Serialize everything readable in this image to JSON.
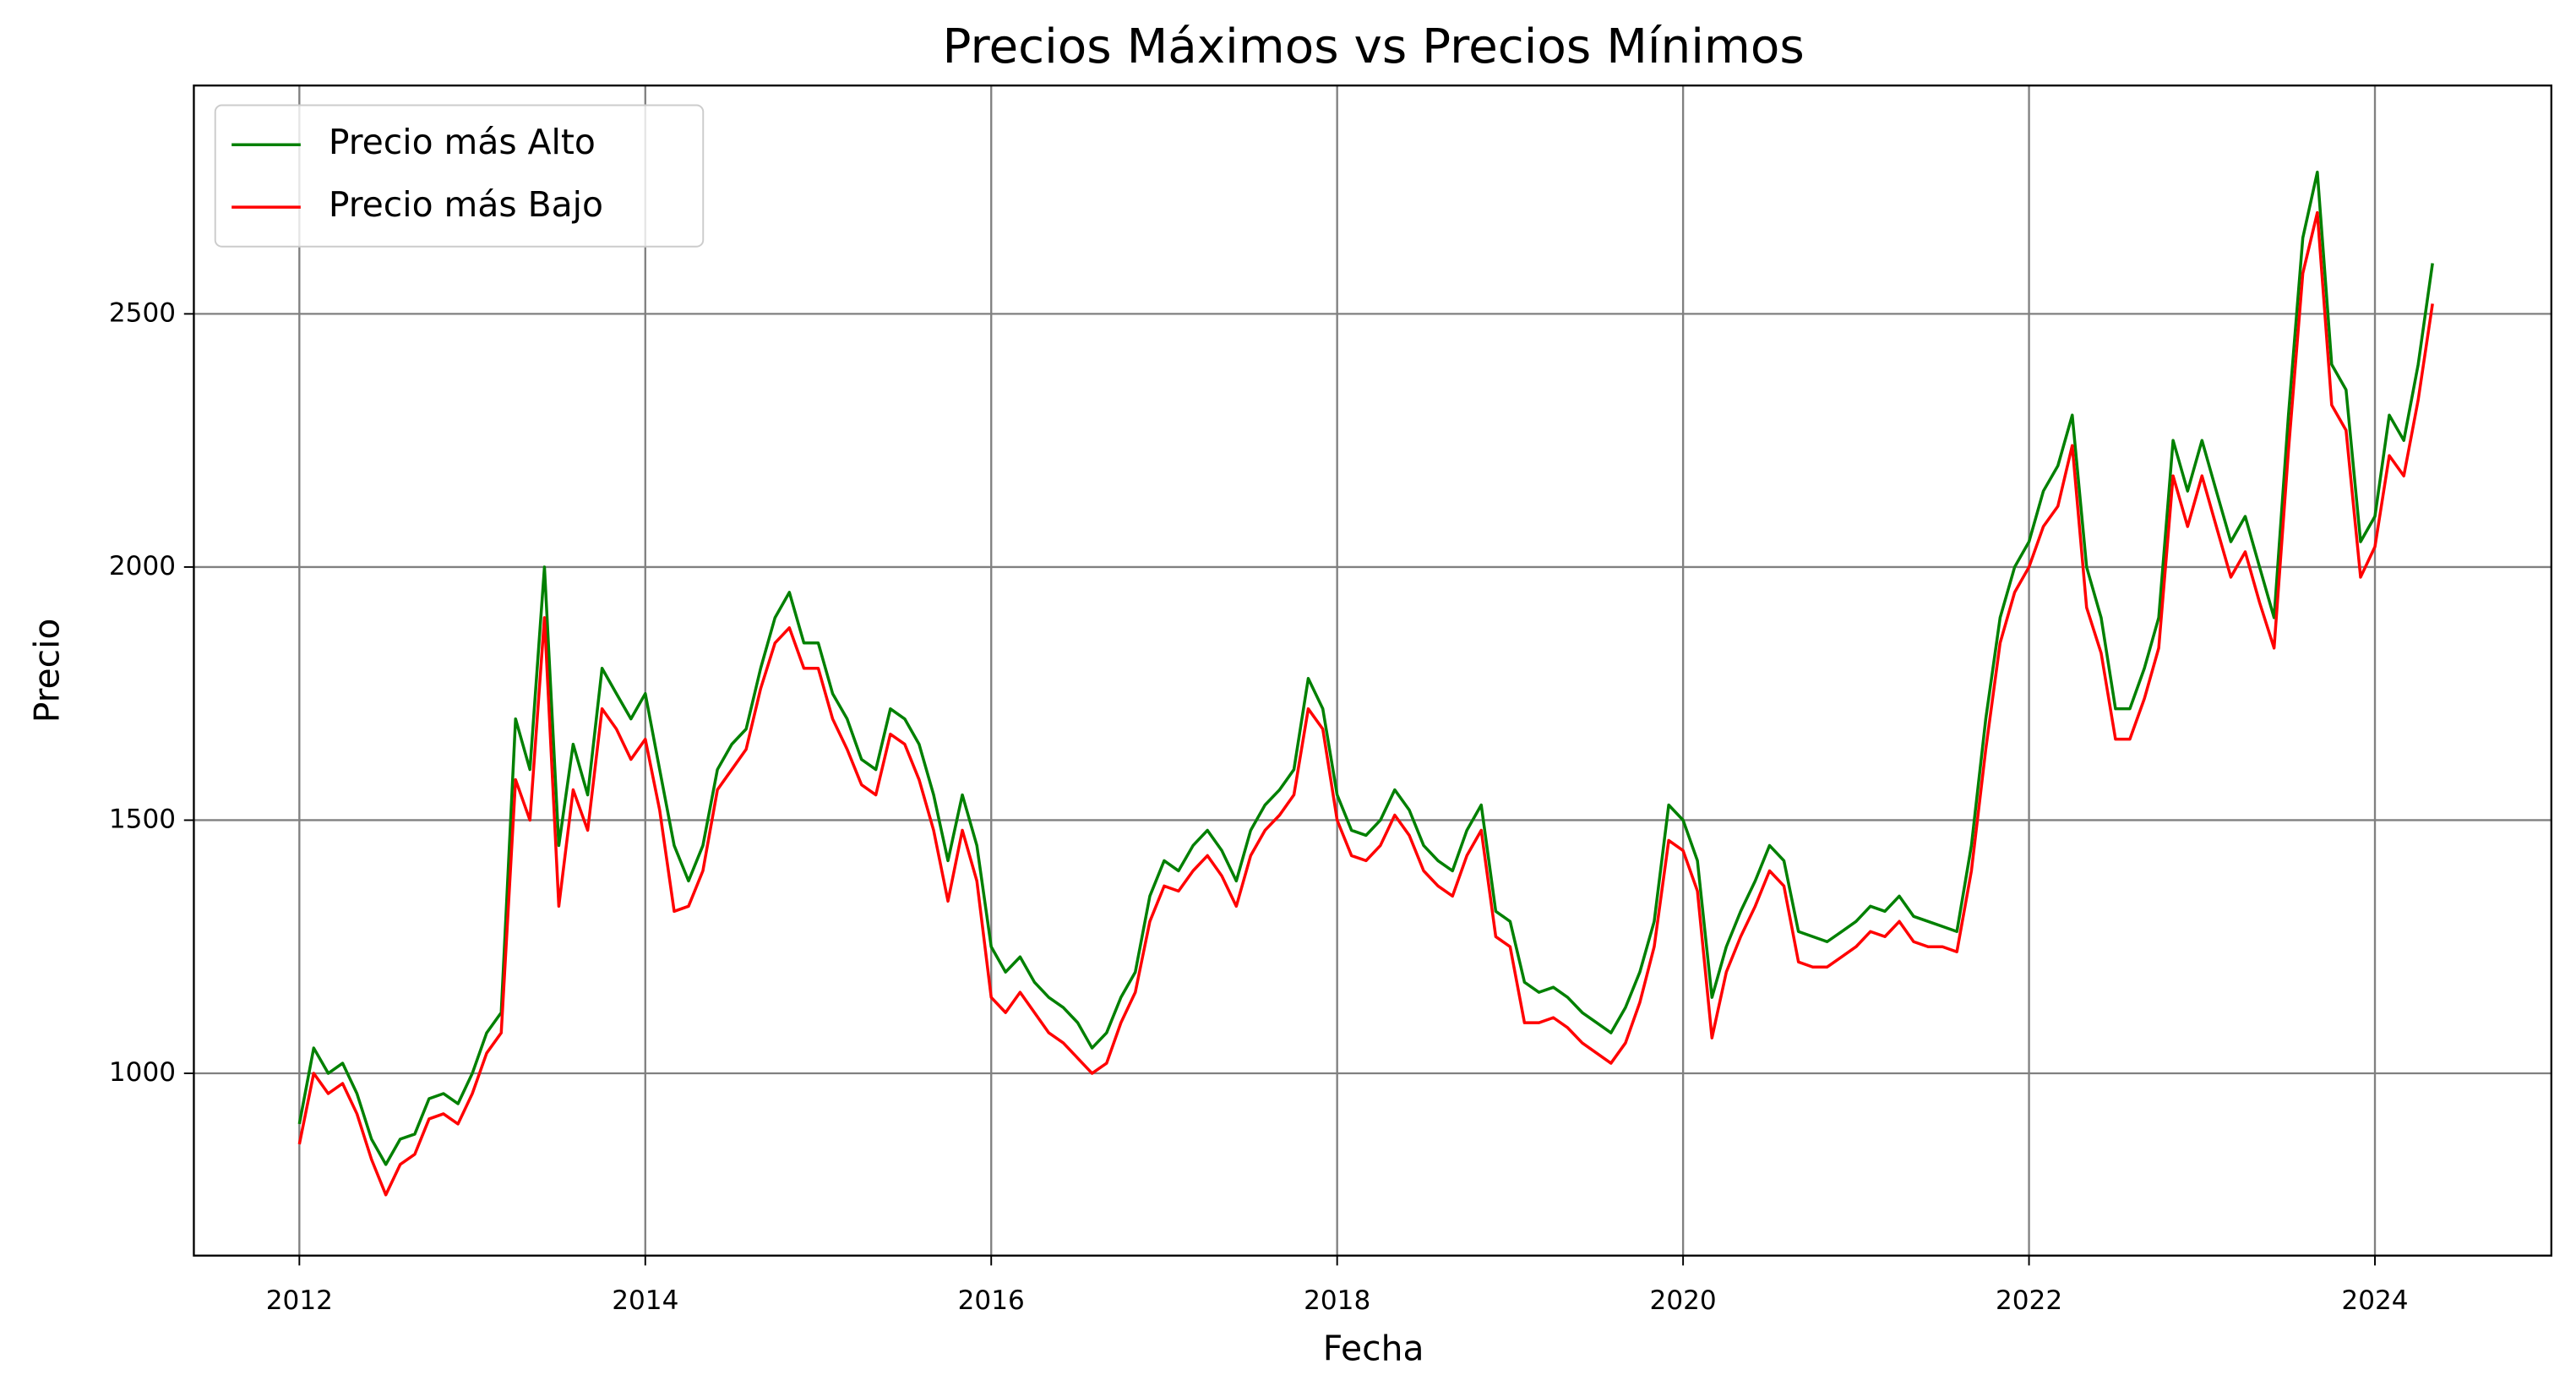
{
  "chart_data": {
    "type": "line",
    "title": "Precios Máximos vs Precios Mínimos",
    "xlabel": "Fecha",
    "ylabel": "Precio",
    "x": [
      2012.0,
      2012.083,
      2012.167,
      2012.25,
      2012.333,
      2012.417,
      2012.5,
      2012.583,
      2012.667,
      2012.75,
      2012.833,
      2012.917,
      2013.0,
      2013.083,
      2013.167,
      2013.25,
      2013.333,
      2013.417,
      2013.5,
      2013.583,
      2013.667,
      2013.75,
      2013.833,
      2013.917,
      2014.0,
      2014.083,
      2014.167,
      2014.25,
      2014.333,
      2014.417,
      2014.5,
      2014.583,
      2014.667,
      2014.75,
      2014.833,
      2014.917,
      2015.0,
      2015.083,
      2015.167,
      2015.25,
      2015.333,
      2015.417,
      2015.5,
      2015.583,
      2015.667,
      2015.75,
      2015.833,
      2015.917,
      2016.0,
      2016.083,
      2016.167,
      2016.25,
      2016.333,
      2016.417,
      2016.5,
      2016.583,
      2016.667,
      2016.75,
      2016.833,
      2016.917,
      2017.0,
      2017.083,
      2017.167,
      2017.25,
      2017.333,
      2017.417,
      2017.5,
      2017.583,
      2017.667,
      2017.75,
      2017.833,
      2017.917,
      2018.0,
      2018.083,
      2018.167,
      2018.25,
      2018.333,
      2018.417,
      2018.5,
      2018.583,
      2018.667,
      2018.75,
      2018.833,
      2018.917,
      2019.0,
      2019.083,
      2019.167,
      2019.25,
      2019.333,
      2019.417,
      2019.5,
      2019.583,
      2019.667,
      2019.75,
      2019.833,
      2019.917,
      2020.0,
      2020.083,
      2020.167,
      2020.25,
      2020.333,
      2020.417,
      2020.5,
      2020.583,
      2020.667,
      2020.75,
      2020.833,
      2020.917,
      2021.0,
      2021.083,
      2021.167,
      2021.25,
      2021.333,
      2021.417,
      2021.5,
      2021.583,
      2021.667,
      2021.75,
      2021.833,
      2021.917,
      2022.0,
      2022.083,
      2022.167,
      2022.25,
      2022.333,
      2022.417,
      2022.5,
      2022.583,
      2022.667,
      2022.75,
      2022.833,
      2022.917,
      2023.0,
      2023.083,
      2023.167,
      2023.25,
      2023.333,
      2023.417,
      2023.5,
      2023.583,
      2023.667,
      2023.75,
      2023.833,
      2023.917,
      2024.0,
      2024.083,
      2024.167,
      2024.25,
      2024.333
    ],
    "series": [
      {
        "name": "Precio más Alto",
        "color": "#008000",
        "values": [
          900,
          1050,
          1000,
          1020,
          960,
          870,
          820,
          870,
          880,
          950,
          960,
          940,
          1000,
          1080,
          1120,
          1700,
          1600,
          2000,
          1450,
          1650,
          1550,
          1800,
          1750,
          1700,
          1750,
          1600,
          1450,
          1380,
          1450,
          1600,
          1650,
          1680,
          1800,
          1900,
          1950,
          1850,
          1850,
          1750,
          1700,
          1620,
          1600,
          1720,
          1700,
          1650,
          1550,
          1420,
          1550,
          1450,
          1250,
          1200,
          1230,
          1180,
          1150,
          1130,
          1100,
          1050,
          1080,
          1150,
          1200,
          1350,
          1420,
          1400,
          1450,
          1480,
          1440,
          1380,
          1480,
          1530,
          1560,
          1600,
          1780,
          1720,
          1550,
          1480,
          1470,
          1500,
          1560,
          1520,
          1450,
          1420,
          1400,
          1480,
          1530,
          1320,
          1300,
          1180,
          1160,
          1170,
          1150,
          1120,
          1100,
          1080,
          1130,
          1200,
          1300,
          1530,
          1500,
          1420,
          1150,
          1250,
          1320,
          1380,
          1450,
          1420,
          1280,
          1270,
          1260,
          1280,
          1300,
          1330,
          1320,
          1350,
          1310,
          1300,
          1290,
          1280,
          1450,
          1700,
          1900,
          2000,
          2050,
          2150,
          2200,
          2300,
          2000,
          1900,
          1720,
          1720,
          1800,
          1900,
          2250,
          2150,
          2250,
          2150,
          2050,
          2100,
          2000,
          1900,
          2300,
          2650,
          2780,
          2400,
          2350,
          2050,
          2100,
          2300,
          2250,
          2400,
          2600
        ]
      },
      {
        "name": "Precio más Bajo",
        "color": "#ff0000",
        "values": [
          860,
          1000,
          960,
          980,
          920,
          830,
          760,
          820,
          840,
          910,
          920,
          900,
          960,
          1040,
          1080,
          1580,
          1500,
          1900,
          1330,
          1560,
          1480,
          1720,
          1680,
          1620,
          1660,
          1520,
          1320,
          1330,
          1400,
          1560,
          1600,
          1640,
          1760,
          1850,
          1880,
          1800,
          1800,
          1700,
          1640,
          1570,
          1550,
          1670,
          1650,
          1580,
          1480,
          1340,
          1480,
          1380,
          1150,
          1120,
          1160,
          1120,
          1080,
          1060,
          1030,
          1000,
          1020,
          1100,
          1160,
          1300,
          1370,
          1360,
          1400,
          1430,
          1390,
          1330,
          1430,
          1480,
          1510,
          1550,
          1720,
          1680,
          1500,
          1430,
          1420,
          1450,
          1510,
          1470,
          1400,
          1370,
          1350,
          1430,
          1480,
          1270,
          1250,
          1100,
          1100,
          1110,
          1090,
          1060,
          1040,
          1020,
          1060,
          1140,
          1250,
          1460,
          1440,
          1360,
          1070,
          1200,
          1270,
          1330,
          1400,
          1370,
          1220,
          1210,
          1210,
          1230,
          1250,
          1280,
          1270,
          1300,
          1260,
          1250,
          1250,
          1240,
          1400,
          1640,
          1850,
          1950,
          2000,
          2080,
          2120,
          2240,
          1920,
          1830,
          1660,
          1660,
          1740,
          1840,
          2180,
          2080,
          2180,
          2080,
          1980,
          2030,
          1930,
          1840,
          2230,
          2580,
          2700,
          2320,
          2270,
          1980,
          2040,
          2220,
          2180,
          2330,
          2520
        ]
      }
    ],
    "xlim": [
      2011.39,
      2025.02
    ],
    "xticks": [
      2012,
      2014,
      2016,
      2018,
      2020,
      2022,
      2024
    ],
    "ylim": [
      640,
      2951
    ],
    "yticks": [
      1000,
      1500,
      2000,
      2500
    ],
    "grid": true,
    "legend": "upper left"
  }
}
